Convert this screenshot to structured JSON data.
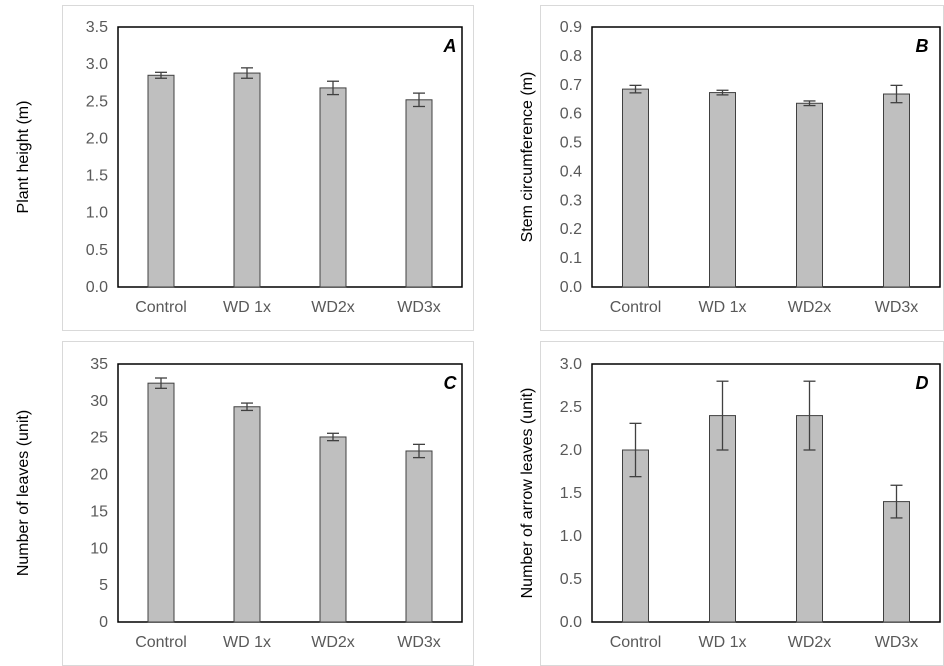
{
  "colors": {
    "bar_fill": "#bfbfbf",
    "bar_stroke": "#404040",
    "error_bar": "#404040",
    "plot_border": "#000000",
    "panel_border": "#d9d9d9",
    "tick_text": "#595959"
  },
  "chart_data": [
    {
      "type": "bar",
      "panel_label": "A",
      "title": "",
      "xlabel": "",
      "ylabel": "Plant height (m)",
      "categories": [
        "Control",
        "WD 1x",
        "WD2x",
        "WD3x"
      ],
      "values": [
        2.85,
        2.88,
        2.68,
        2.52
      ],
      "errors": [
        0.04,
        0.07,
        0.09,
        0.09
      ],
      "ylim": [
        0,
        3.5
      ],
      "yticks": [
        "0.0",
        "0.5",
        "1.0",
        "1.5",
        "2.0",
        "2.5",
        "3.0",
        "3.5"
      ],
      "grid": false,
      "legend": "none"
    },
    {
      "type": "bar",
      "panel_label": "B",
      "title": "",
      "xlabel": "",
      "ylabel": "Stem circumference (m)",
      "categories": [
        "Control",
        "WD 1x",
        "WD2x",
        "WD3x"
      ],
      "values": [
        0.685,
        0.673,
        0.636,
        0.668
      ],
      "errors": [
        0.013,
        0.008,
        0.008,
        0.03
      ],
      "ylim": [
        0,
        0.9
      ],
      "yticks": [
        "0.0",
        "0.1",
        "0.2",
        "0.3",
        "0.4",
        "0.5",
        "0.6",
        "0.7",
        "0.8",
        "0.9"
      ],
      "grid": false,
      "legend": "none"
    },
    {
      "type": "bar",
      "panel_label": "C",
      "title": "",
      "xlabel": "",
      "ylabel": "Number of leaves (unit)",
      "categories": [
        "Control",
        "WD 1x",
        "WD2x",
        "WD3x"
      ],
      "values": [
        32.4,
        29.2,
        25.1,
        23.2
      ],
      "errors": [
        0.7,
        0.5,
        0.5,
        0.9
      ],
      "ylim": [
        0,
        35
      ],
      "yticks": [
        "0",
        "5",
        "10",
        "15",
        "20",
        "25",
        "30",
        "35"
      ],
      "grid": false,
      "legend": "none"
    },
    {
      "type": "bar",
      "panel_label": "D",
      "title": "",
      "xlabel": "",
      "ylabel": "Number of arrow leaves (unit)",
      "categories": [
        "Control",
        "WD 1x",
        "WD2x",
        "WD3x"
      ],
      "values": [
        2.0,
        2.4,
        2.4,
        1.4
      ],
      "errors": [
        0.31,
        0.4,
        0.4,
        0.19
      ],
      "ylim": [
        0,
        3.0
      ],
      "yticks": [
        "0.0",
        "0.5",
        "1.0",
        "1.5",
        "2.0",
        "2.5",
        "3.0"
      ],
      "grid": false,
      "legend": "none"
    }
  ]
}
